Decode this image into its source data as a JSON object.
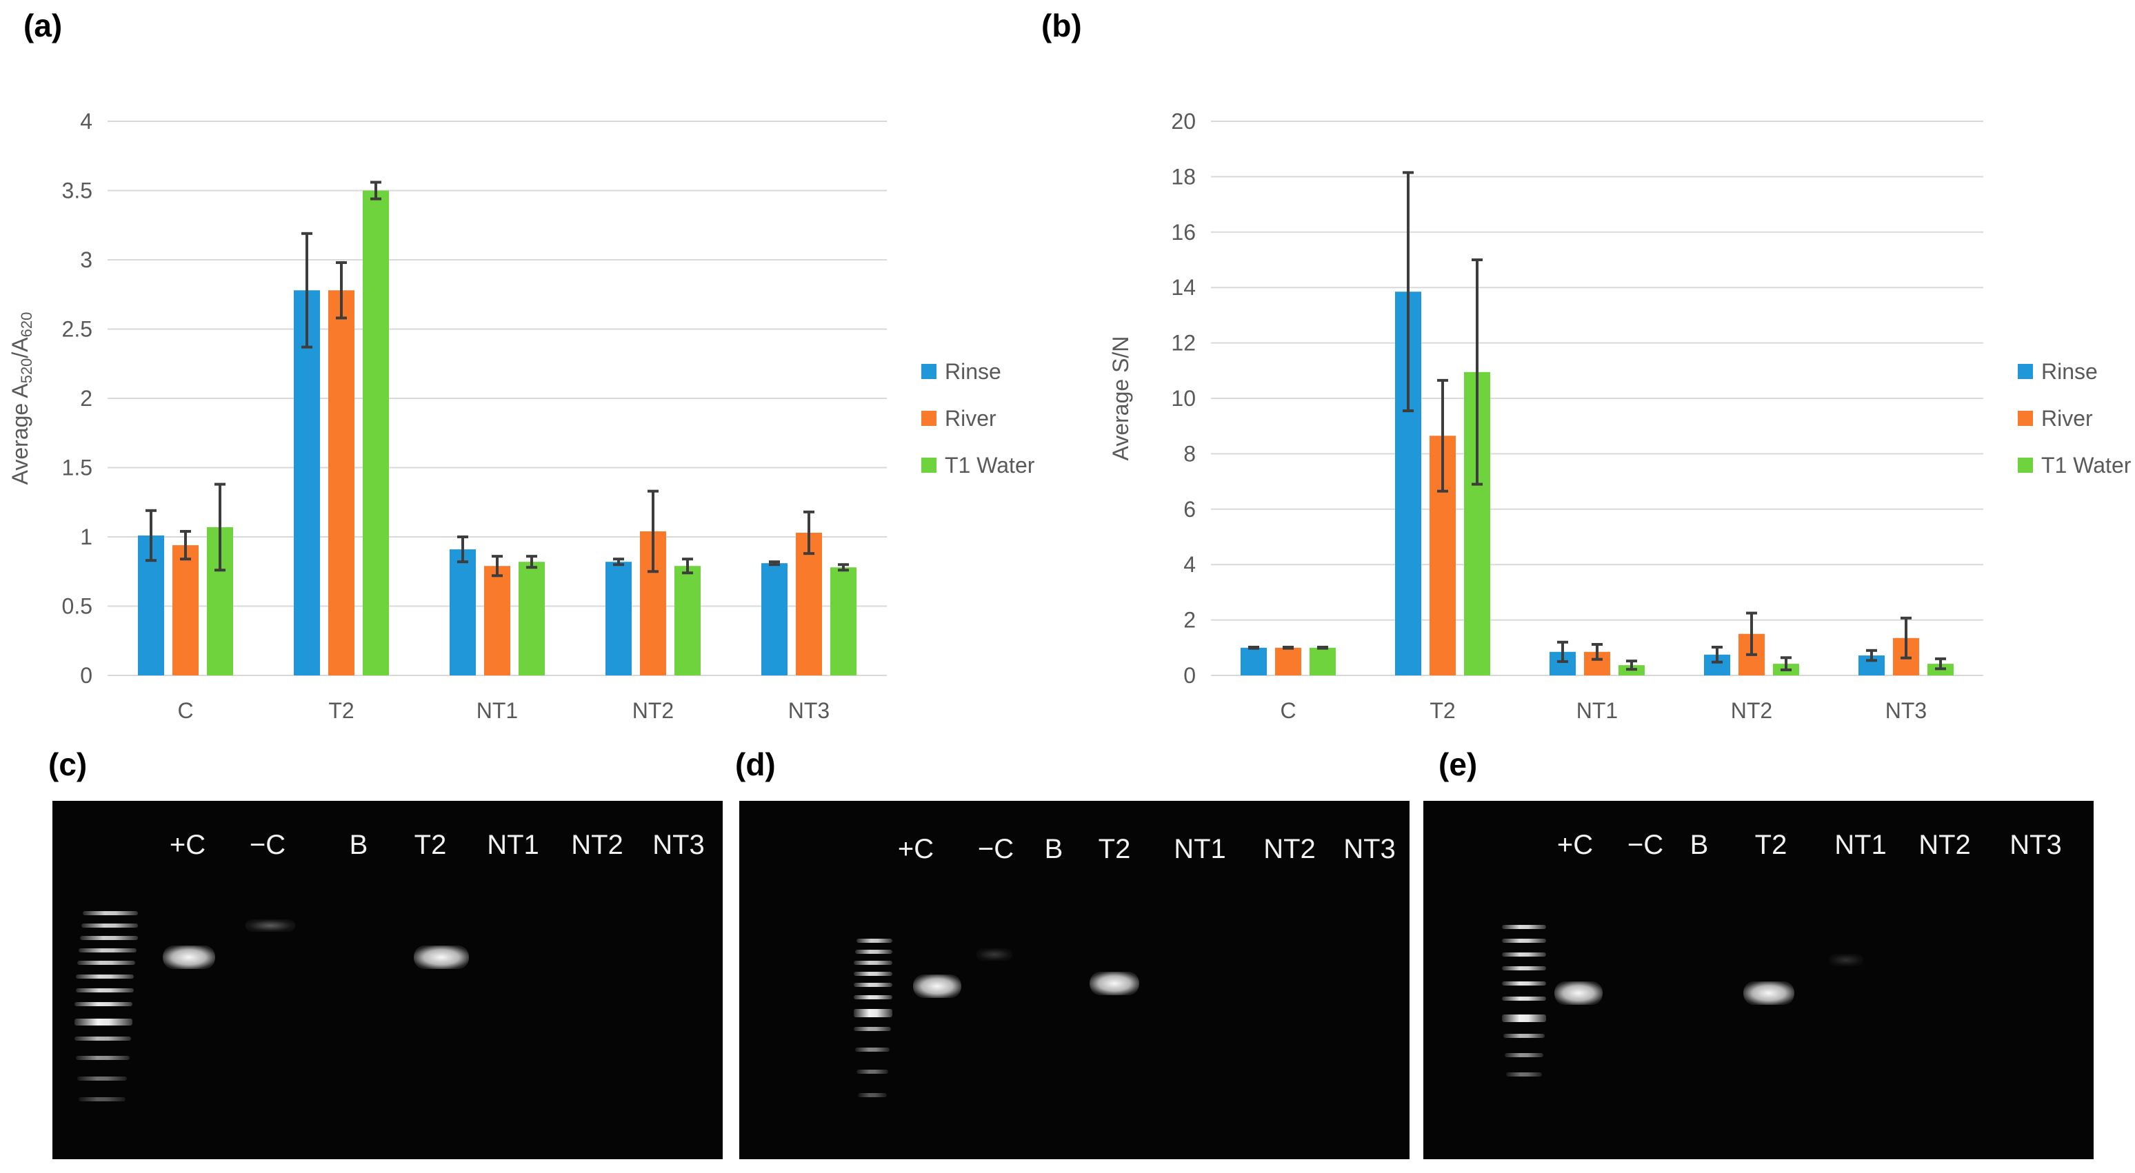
{
  "panel_labels": {
    "a": "(a)",
    "b": "(b)",
    "c": "(c)",
    "d": "(d)",
    "e": "(e)"
  },
  "colors": {
    "Rinse": "#1f97d8",
    "River": "#f97a2a",
    "T1 Water": "#6fd33d",
    "error_bar": "#3d3d3d",
    "grid": "#d9d9d9"
  },
  "chart_data": [
    {
      "type": "bar",
      "title": "",
      "xlabel": "",
      "ylabel": "Average A",
      "ylabel_sub1": "520",
      "ylabel_mid": "/A",
      "ylabel_sub2": "620",
      "ylim": [
        0,
        4
      ],
      "yticks": [
        0,
        0.5,
        1,
        1.5,
        2,
        2.5,
        3,
        3.5,
        4
      ],
      "ytick_labels": [
        "0",
        "0.5",
        "1",
        "1.5",
        "2",
        "2.5",
        "3",
        "3.5",
        "4"
      ],
      "categories": [
        "C",
        "T2",
        "NT1",
        "NT2",
        "NT3"
      ],
      "legend_position": "right",
      "series": [
        {
          "name": "Rinse",
          "values": [
            1.01,
            2.78,
            0.91,
            0.82,
            0.81
          ],
          "errors": [
            0.18,
            0.41,
            0.09,
            0.02,
            0.01
          ]
        },
        {
          "name": "River",
          "values": [
            0.94,
            2.78,
            0.79,
            1.04,
            1.03
          ],
          "errors": [
            0.1,
            0.2,
            0.07,
            0.29,
            0.15
          ]
        },
        {
          "name": "T1 Water",
          "values": [
            1.07,
            3.5,
            0.82,
            0.79,
            0.78
          ],
          "errors": [
            0.31,
            0.06,
            0.04,
            0.05,
            0.02
          ]
        }
      ]
    },
    {
      "type": "bar",
      "title": "",
      "xlabel": "",
      "ylabel": "Average S/N",
      "ylim": [
        0,
        20
      ],
      "yticks": [
        0,
        2,
        4,
        6,
        8,
        10,
        12,
        14,
        16,
        18,
        20
      ],
      "ytick_labels": [
        "0",
        "2",
        "4",
        "6",
        "8",
        "10",
        "12",
        "14",
        "16",
        "18",
        "20"
      ],
      "categories": [
        "C",
        "T2",
        "NT1",
        "NT2",
        "NT3"
      ],
      "legend_position": "right",
      "series": [
        {
          "name": "Rinse",
          "values": [
            1.0,
            13.85,
            0.85,
            0.75,
            0.72
          ],
          "errors": [
            0.02,
            4.3,
            0.35,
            0.27,
            0.18
          ]
        },
        {
          "name": "River",
          "values": [
            1.0,
            8.65,
            0.85,
            1.5,
            1.35
          ],
          "errors": [
            0.02,
            2.0,
            0.27,
            0.75,
            0.72
          ]
        },
        {
          "name": "T1 Water",
          "values": [
            1.0,
            10.95,
            0.37,
            0.42,
            0.42
          ],
          "errors": [
            0.02,
            4.05,
            0.15,
            0.22,
            0.18
          ]
        }
      ]
    }
  ],
  "gels": [
    {
      "lanes": [
        "+C",
        "−C",
        "B",
        "T2",
        "NT1",
        "NT2",
        "NT3"
      ]
    },
    {
      "lanes": [
        "+C",
        "−C",
        "B",
        "T2",
        "NT1",
        "NT2",
        "NT3"
      ]
    },
    {
      "lanes": [
        "+C",
        "−C",
        "B",
        "T2",
        "NT1",
        "NT2",
        "NT3"
      ]
    }
  ]
}
